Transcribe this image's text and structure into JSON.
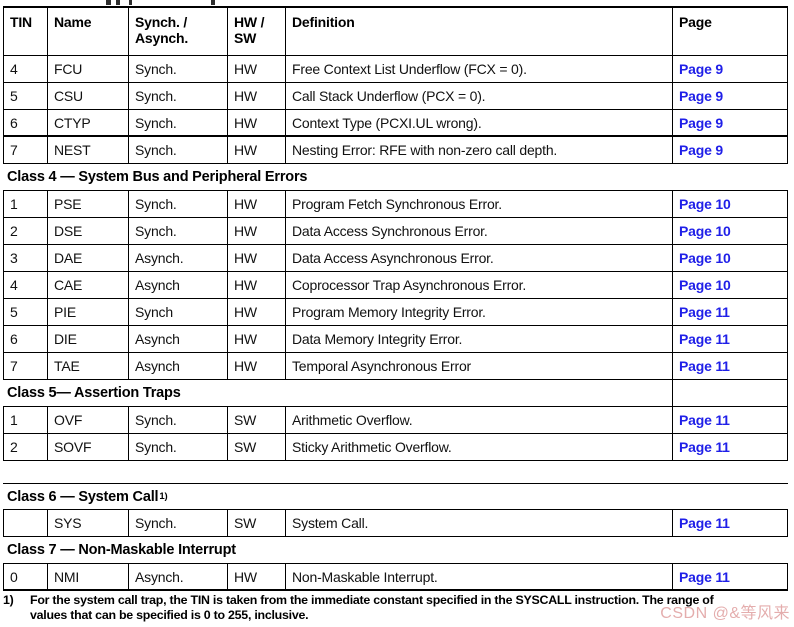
{
  "colors": {
    "page_link_blue": "#1f1fe8",
    "table_border": "#000000",
    "watermark_pink": "#e09f9f",
    "body_text": "#111111"
  },
  "table": {
    "columns": [
      {
        "key": "tin",
        "label_lines": [
          "TIN"
        ]
      },
      {
        "key": "name",
        "label_lines": [
          "Name"
        ]
      },
      {
        "key": "sync",
        "label_lines": [
          "Synch. /",
          "Asynch."
        ]
      },
      {
        "key": "hwsw",
        "label_lines": [
          "HW /",
          "SW"
        ]
      },
      {
        "key": "definition",
        "label_lines": [
          "Definition"
        ]
      },
      {
        "key": "page",
        "label_lines": [
          "Page"
        ]
      }
    ],
    "rows": [
      {
        "type": "data",
        "tin": "4",
        "name": "FCU",
        "sync": "Synch.",
        "hwsw": "HW",
        "definition": "Free Context List Underflow (FCX = 0).",
        "page": "Page 9"
      },
      {
        "type": "data",
        "tin": "5",
        "name": "CSU",
        "sync": "Synch.",
        "hwsw": "HW",
        "definition": "Call Stack Underflow (PCX = 0).",
        "page": "Page 9"
      },
      {
        "type": "data",
        "tin": "6",
        "name": "CTYP",
        "sync": "Synch.",
        "hwsw": "HW",
        "definition": "Context Type (PCXI.UL wrong).",
        "page": "Page 9",
        "bb": 2
      },
      {
        "type": "data",
        "tin": "7",
        "name": "NEST",
        "sync": "Synch.",
        "hwsw": "HW",
        "definition": "Nesting Error: RFE with non-zero call depth.",
        "page": "Page 9"
      },
      {
        "type": "section",
        "label": "Class 4 — System Bus and Peripheral Errors"
      },
      {
        "type": "data",
        "tin": "1",
        "name": "PSE",
        "sync": "Synch.",
        "hwsw": "HW",
        "definition": "Program Fetch Synchronous Error.",
        "page": "Page 10"
      },
      {
        "type": "data",
        "tin": "2",
        "name": "DSE",
        "sync": "Synch.",
        "hwsw": "HW",
        "definition": "Data Access Synchronous Error.",
        "page": "Page 10"
      },
      {
        "type": "data",
        "tin": "3",
        "name": "DAE",
        "sync": "Asynch.",
        "hwsw": "HW",
        "definition": "Data Access Asynchronous Error.",
        "page": "Page 10"
      },
      {
        "type": "data",
        "tin": "4",
        "name": "CAE",
        "sync": "Asynch",
        "hwsw": "HW",
        "definition": "Coprocessor Trap Asynchronous Error.",
        "page": "Page 10"
      },
      {
        "type": "data",
        "tin": "5",
        "name": "PIE",
        "sync": "Synch",
        "hwsw": "HW",
        "definition": "Program Memory Integrity Error.",
        "page": "Page 11"
      },
      {
        "type": "data",
        "tin": "6",
        "name": "DIE",
        "sync": "Asynch",
        "hwsw": "HW",
        "definition": "Data Memory Integrity Error.",
        "page": "Page 11"
      },
      {
        "type": "data",
        "tin": "7",
        "name": "TAE",
        "sync": "Asynch",
        "hwsw": "HW",
        "definition": "Temporal Asynchronous Error",
        "page": "Page 11"
      },
      {
        "type": "section",
        "label": "Class 5— Assertion Traps",
        "page_cell": true
      },
      {
        "type": "data",
        "tin": "1",
        "name": "OVF",
        "sync": "Synch.",
        "hwsw": "SW",
        "definition": "Arithmetic Overflow.",
        "page": "Page 11"
      },
      {
        "type": "data",
        "tin": "2",
        "name": "SOVF",
        "sync": "Synch.",
        "hwsw": "SW",
        "definition": "Sticky Arithmetic Overflow.",
        "page": "Page 11"
      },
      {
        "type": "spacer"
      },
      {
        "type": "section",
        "label": "Class 6 — System Call",
        "sup": "1)",
        "bt": 1
      },
      {
        "type": "data",
        "tin": "",
        "name": "SYS",
        "sync": "Synch.",
        "hwsw": "SW",
        "definition": "System Call.",
        "page": "Page 11"
      },
      {
        "type": "section",
        "label": "Class 7 — Non-Maskable Interrupt"
      },
      {
        "type": "data",
        "tin": "0",
        "name": "NMI",
        "sync": "Asynch.",
        "hwsw": "HW",
        "definition": "Non-Maskable Interrupt.",
        "page": "Page 11",
        "bb": 2
      }
    ]
  },
  "footnote": {
    "marker": "1)",
    "lines": [
      "For the system call trap, the TIN is taken from the immediate constant specified in the SYSCALL instruction. The range of",
      "values that can be specified is 0 to 255, inclusive."
    ]
  },
  "watermark": {
    "text": "CSDN @&等风来"
  }
}
